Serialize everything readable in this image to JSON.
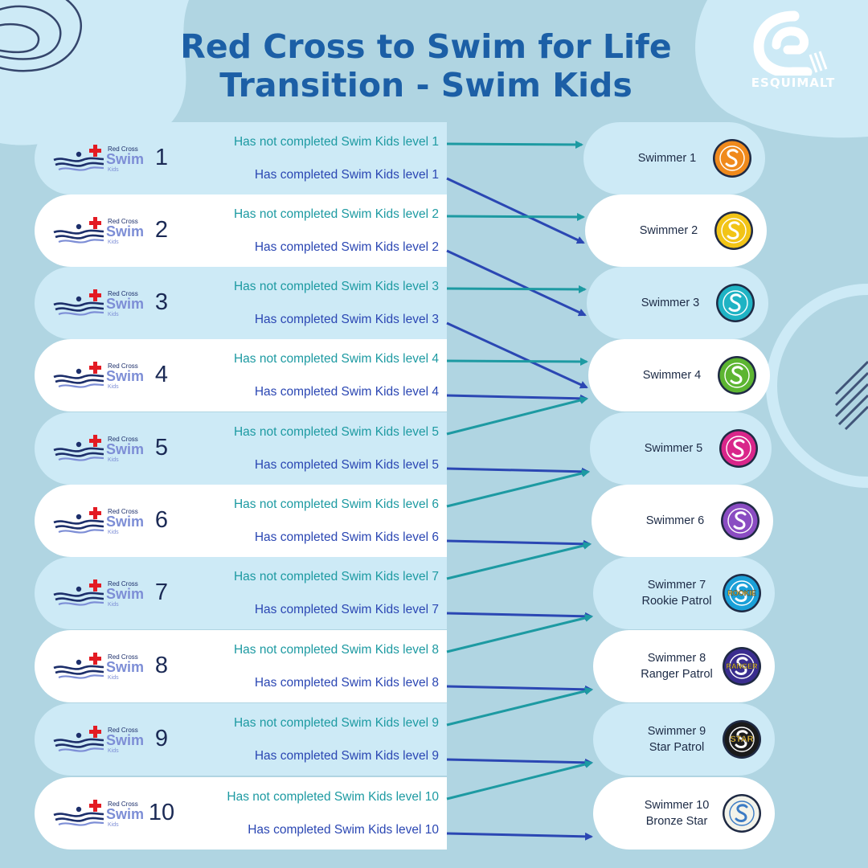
{
  "title": {
    "line1": "Red Cross to Swim for Life",
    "line2": "Transition - Swim Kids"
  },
  "brand": {
    "name": "ESQUIMALT"
  },
  "colors": {
    "background": "#b0d5e2",
    "title": "#1c5fa6",
    "not_completed": "#1d9aa2",
    "completed": "#2b47b3",
    "row_light": "#cdeaf6",
    "row_white": "#ffffff"
  },
  "red_cross_logo": {
    "org": "Red Cross",
    "program": "Swim",
    "sub": "Kids"
  },
  "levels": [
    {
      "number": "1",
      "not_completed": "Has not completed Swim Kids level 1",
      "completed": "Has completed  Swim Kids level 1"
    },
    {
      "number": "2",
      "not_completed": "Has not completed Swim Kids level 2",
      "completed": "Has completed  Swim Kids level 2"
    },
    {
      "number": "3",
      "not_completed": "Has not completed Swim Kids level 3",
      "completed": "Has completed  Swim Kids level 3"
    },
    {
      "number": "4",
      "not_completed": "Has not completed Swim Kids level 4",
      "completed": "Has completed  Swim Kids level 4"
    },
    {
      "number": "5",
      "not_completed": "Has not completed Swim Kids level 5",
      "completed": "Has completed  Swim Kids level 5"
    },
    {
      "number": "6",
      "not_completed": "Has not completed Swim Kids level 6",
      "completed": "Has completed  Swim Kids level 6"
    },
    {
      "number": "7",
      "not_completed": "Has not completed Swim Kids level 7",
      "completed": "Has completed  Swim Kids level 7"
    },
    {
      "number": "8",
      "not_completed": "Has not completed Swim Kids level 8",
      "completed": "Has completed  Swim Kids level 8"
    },
    {
      "number": "9",
      "not_completed": "Has not completed Swim Kids level 9",
      "completed": "Has completed  Swim Kids level 9"
    },
    {
      "number": "10",
      "not_completed": "Has not completed Swim Kids level 10",
      "completed": "Has completed  Swim Kids level 10"
    }
  ],
  "swimmer_levels": [
    {
      "line1": "Swimmer 1",
      "line2": "",
      "badge_color": "#f08a1c",
      "badge_word": ""
    },
    {
      "line1": "Swimmer 2",
      "line2": "",
      "badge_color": "#f2c417",
      "badge_word": ""
    },
    {
      "line1": "Swimmer 3",
      "line2": "",
      "badge_color": "#1fb3c4",
      "badge_word": ""
    },
    {
      "line1": "Swimmer 4",
      "line2": "",
      "badge_color": "#5cb531",
      "badge_word": ""
    },
    {
      "line1": "Swimmer 5",
      "line2": "",
      "badge_color": "#d9268a",
      "badge_word": ""
    },
    {
      "line1": "Swimmer 6",
      "line2": "",
      "badge_color": "#8a4cc2",
      "badge_word": ""
    },
    {
      "line1": "Swimmer 7",
      "line2": "Rookie Patrol",
      "badge_color": "#1aa0d8",
      "badge_word": "ROOKIE"
    },
    {
      "line1": "Swimmer 8",
      "line2": "Ranger Patrol",
      "badge_color": "#3a2d8f",
      "badge_word": "RANGER"
    },
    {
      "line1": "Swimmer 9",
      "line2": "Star Patrol",
      "badge_color": "#1b1b1b",
      "badge_word": "STAR"
    },
    {
      "line1": "Swimmer 10",
      "line2": "Bronze Star",
      "badge_color": "#f3f3ea",
      "badge_word": ""
    }
  ],
  "transitions": [
    {
      "from_level": 1,
      "status": "not_completed",
      "to_swimmer": 1
    },
    {
      "from_level": 1,
      "status": "completed",
      "to_swimmer": 2
    },
    {
      "from_level": 2,
      "status": "not_completed",
      "to_swimmer": 2
    },
    {
      "from_level": 2,
      "status": "completed",
      "to_swimmer": 3
    },
    {
      "from_level": 3,
      "status": "not_completed",
      "to_swimmer": 3
    },
    {
      "from_level": 3,
      "status": "completed",
      "to_swimmer": 4
    },
    {
      "from_level": 4,
      "status": "not_completed",
      "to_swimmer": 4
    },
    {
      "from_level": 4,
      "status": "completed",
      "to_swimmer": 4
    },
    {
      "from_level": 5,
      "status": "not_completed",
      "to_swimmer": 4
    },
    {
      "from_level": 5,
      "status": "completed",
      "to_swimmer": 5
    },
    {
      "from_level": 6,
      "status": "not_completed",
      "to_swimmer": 5
    },
    {
      "from_level": 6,
      "status": "completed",
      "to_swimmer": 6
    },
    {
      "from_level": 7,
      "status": "not_completed",
      "to_swimmer": 6
    },
    {
      "from_level": 7,
      "status": "completed",
      "to_swimmer": 7
    },
    {
      "from_level": 8,
      "status": "not_completed",
      "to_swimmer": 7
    },
    {
      "from_level": 8,
      "status": "completed",
      "to_swimmer": 8
    },
    {
      "from_level": 9,
      "status": "not_completed",
      "to_swimmer": 8
    },
    {
      "from_level": 9,
      "status": "completed",
      "to_swimmer": 9
    },
    {
      "from_level": 10,
      "status": "not_completed",
      "to_swimmer": 9
    },
    {
      "from_level": 10,
      "status": "completed",
      "to_swimmer": 10
    }
  ]
}
